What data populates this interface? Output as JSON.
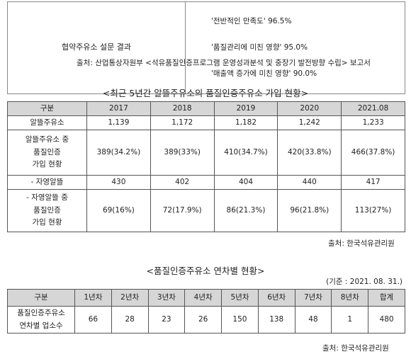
{
  "survey": {
    "label": "협약주유소 설문 결과",
    "items": [
      "'전반적인 만족도' 96.5%",
      "'품질관리에 미친 영향' 95.0%",
      "'매출액 증가에 미친 영향' 90.0%"
    ],
    "source": "출처: 산업통상자원부 <석유품질인증프로그램 운영성과분석 및 중장기 발전방향 수립> 보고서"
  },
  "membership": {
    "title": "<최근 5년간 알뜰주유소의 품질인증주유소 가입 현황>",
    "header": [
      "구분",
      "2017",
      "2018",
      "2019",
      "2020",
      "2021.08"
    ],
    "rows": [
      [
        "알뜰주유소",
        "1,139",
        "1,172",
        "1,182",
        "1,242",
        "1,233"
      ],
      [
        "알뜰주유소 중\n품질인증\n가입 현황",
        "389(34.2%)",
        "389(33%)",
        "410(34.7%)",
        "420(33.8%)",
        "466(37.8%)"
      ],
      [
        "- 자영알뜰",
        "430",
        "402",
        "404",
        "440",
        "417"
      ],
      [
        "- 자영알뜰 중\n품질인증\n가입 현황",
        "69(16%)",
        "72(17.9%)",
        "86(21.3%)",
        "96(21.8%)",
        "113(27%)"
      ]
    ],
    "source": "출처: 한국석유관리원"
  },
  "years": {
    "title": "<품질인증주유소 연차별 현황>",
    "basis": "(기준 : 2021. 08. 31.)",
    "header": [
      "구분",
      "1년차",
      "2년차",
      "3년차",
      "4년차",
      "5년차",
      "6년차",
      "7년차",
      "8년차",
      "합계"
    ],
    "rows": [
      [
        "품질인증주유소\n연차별 업소수",
        "66",
        "28",
        "23",
        "26",
        "150",
        "138",
        "48",
        "1",
        "480"
      ]
    ],
    "source": "출처: 한국석유관리원"
  }
}
